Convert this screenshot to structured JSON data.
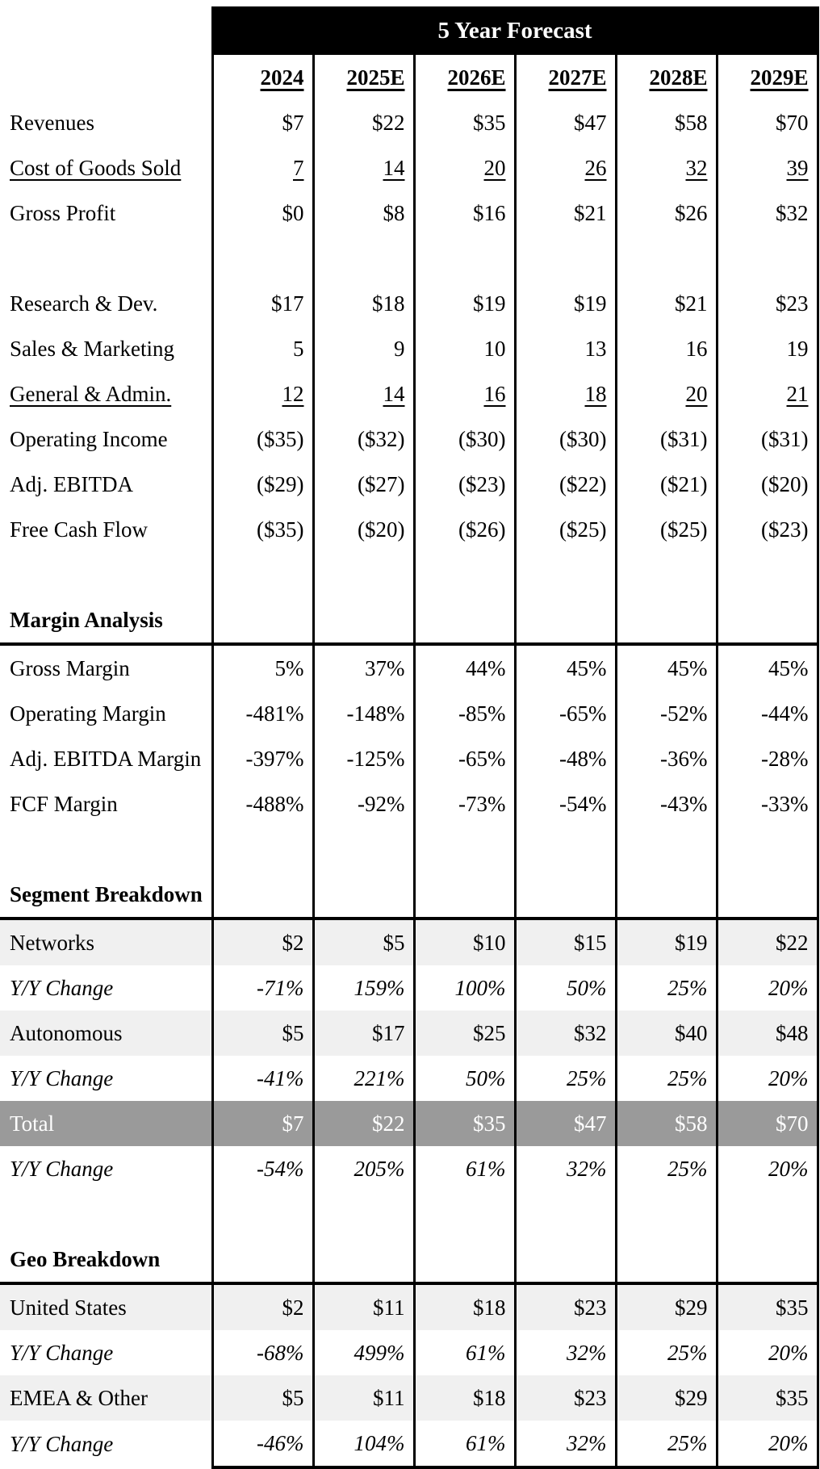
{
  "table": {
    "title": "5 Year Forecast",
    "columns": [
      "2024",
      "2025E",
      "2026E",
      "2027E",
      "2028E",
      "2029E"
    ],
    "rows": [
      {
        "label": "Revenues",
        "values": [
          "$7",
          "$22",
          "$35",
          "$47",
          "$58",
          "$70"
        ]
      },
      {
        "label": "Cost of Goods Sold",
        "values": [
          "7",
          "14",
          "20",
          "26",
          "32",
          "39"
        ],
        "underline": true
      },
      {
        "label": "Gross Profit",
        "values": [
          "$0",
          "$8",
          "$16",
          "$21",
          "$26",
          "$32"
        ]
      },
      {
        "blank": true
      },
      {
        "label": "Research & Dev.",
        "values": [
          "$17",
          "$18",
          "$19",
          "$19",
          "$21",
          "$23"
        ]
      },
      {
        "label": "Sales & Marketing",
        "values": [
          "5",
          "9",
          "10",
          "13",
          "16",
          "19"
        ]
      },
      {
        "label": "General & Admin.",
        "values": [
          "12",
          "14",
          "16",
          "18",
          "20",
          "21"
        ],
        "underline": true
      },
      {
        "label": "Operating Income",
        "values": [
          "($35)",
          "($32)",
          "($30)",
          "($30)",
          "($31)",
          "($31)"
        ]
      },
      {
        "label": "Adj. EBITDA",
        "values": [
          "($29)",
          "($27)",
          "($23)",
          "($22)",
          "($21)",
          "($20)"
        ]
      },
      {
        "label": "Free Cash Flow",
        "values": [
          "($35)",
          "($20)",
          "($26)",
          "($25)",
          "($25)",
          "($23)"
        ]
      },
      {
        "blank": true
      },
      {
        "label": "Margin Analysis",
        "section": true
      },
      {
        "label": "Gross Margin",
        "values": [
          "5%",
          "37%",
          "44%",
          "45%",
          "45%",
          "45%"
        ]
      },
      {
        "label": "Operating Margin",
        "values": [
          "-481%",
          "-148%",
          "-85%",
          "-65%",
          "-52%",
          "-44%"
        ]
      },
      {
        "label": "Adj. EBITDA Margin",
        "values": [
          "-397%",
          "-125%",
          "-65%",
          "-48%",
          "-36%",
          "-28%"
        ]
      },
      {
        "label": "FCF Margin",
        "values": [
          "-488%",
          "-92%",
          "-73%",
          "-54%",
          "-43%",
          "-33%"
        ]
      },
      {
        "blank": true
      },
      {
        "label": "Segment Breakdown",
        "section": true
      },
      {
        "label": "Networks",
        "values": [
          "$2",
          "$5",
          "$10",
          "$15",
          "$19",
          "$22"
        ],
        "shade": "light"
      },
      {
        "label": "Y/Y Change",
        "values": [
          "-71%",
          "159%",
          "100%",
          "50%",
          "25%",
          "20%"
        ],
        "italic": true
      },
      {
        "label": "Autonomous",
        "values": [
          "$5",
          "$17",
          "$25",
          "$32",
          "$40",
          "$48"
        ],
        "shade": "light"
      },
      {
        "label": "Y/Y Change",
        "values": [
          "-41%",
          "221%",
          "50%",
          "25%",
          "25%",
          "20%"
        ],
        "italic": true
      },
      {
        "label": "Total",
        "values": [
          "$7",
          "$22",
          "$35",
          "$47",
          "$58",
          "$70"
        ],
        "shade": "dark"
      },
      {
        "label": "Y/Y Change",
        "values": [
          "-54%",
          "205%",
          "61%",
          "32%",
          "25%",
          "20%"
        ],
        "italic": true
      },
      {
        "blank": true
      },
      {
        "label": "Geo Breakdown",
        "section": true
      },
      {
        "label": "United States",
        "values": [
          "$2",
          "$11",
          "$18",
          "$23",
          "$29",
          "$35"
        ],
        "shade": "light"
      },
      {
        "label": "Y/Y Change",
        "values": [
          "-68%",
          "499%",
          "61%",
          "32%",
          "25%",
          "20%"
        ],
        "italic": true
      },
      {
        "label": "EMEA & Other",
        "values": [
          "$5",
          "$11",
          "$18",
          "$23",
          "$29",
          "$35"
        ],
        "shade": "light"
      },
      {
        "label": "Y/Y Change",
        "values": [
          "-46%",
          "104%",
          "61%",
          "32%",
          "25%",
          "20%"
        ],
        "italic": true
      }
    ],
    "colors": {
      "header_bg": "#000000",
      "header_text": "#ffffff",
      "light_row": "#f0f0f0",
      "dark_row": "#9a9a9a",
      "dark_row_text": "#ffffff",
      "border": "#000000"
    }
  },
  "chart_data": {
    "type": "table",
    "title": "5 Year Forecast",
    "categories": [
      "2024",
      "2025E",
      "2026E",
      "2027E",
      "2028E",
      "2029E"
    ],
    "series": [
      {
        "name": "Revenues ($M)",
        "values": [
          7,
          22,
          35,
          47,
          58,
          70
        ]
      },
      {
        "name": "Cost of Goods Sold",
        "values": [
          7,
          14,
          20,
          26,
          32,
          39
        ]
      },
      {
        "name": "Gross Profit",
        "values": [
          0,
          8,
          16,
          21,
          26,
          32
        ]
      },
      {
        "name": "Research & Dev.",
        "values": [
          17,
          18,
          19,
          19,
          21,
          23
        ]
      },
      {
        "name": "Sales & Marketing",
        "values": [
          5,
          9,
          10,
          13,
          16,
          19
        ]
      },
      {
        "name": "General & Admin.",
        "values": [
          12,
          14,
          16,
          18,
          20,
          21
        ]
      },
      {
        "name": "Operating Income",
        "values": [
          -35,
          -32,
          -30,
          -30,
          -31,
          -31
        ]
      },
      {
        "name": "Adj. EBITDA",
        "values": [
          -29,
          -27,
          -23,
          -22,
          -21,
          -20
        ]
      },
      {
        "name": "Free Cash Flow",
        "values": [
          -35,
          -20,
          -26,
          -25,
          -25,
          -23
        ]
      },
      {
        "name": "Gross Margin (%)",
        "values": [
          5,
          37,
          44,
          45,
          45,
          45
        ]
      },
      {
        "name": "Operating Margin (%)",
        "values": [
          -481,
          -148,
          -85,
          -65,
          -52,
          -44
        ]
      },
      {
        "name": "Adj. EBITDA Margin (%)",
        "values": [
          -397,
          -125,
          -65,
          -48,
          -36,
          -28
        ]
      },
      {
        "name": "FCF Margin (%)",
        "values": [
          -488,
          -92,
          -73,
          -54,
          -43,
          -33
        ]
      },
      {
        "name": "Networks",
        "values": [
          2,
          5,
          10,
          15,
          19,
          22
        ]
      },
      {
        "name": "Networks Y/Y Change (%)",
        "values": [
          -71,
          159,
          100,
          50,
          25,
          20
        ]
      },
      {
        "name": "Autonomous",
        "values": [
          5,
          17,
          25,
          32,
          40,
          48
        ]
      },
      {
        "name": "Autonomous Y/Y Change (%)",
        "values": [
          -41,
          221,
          50,
          25,
          25,
          20
        ]
      },
      {
        "name": "Total",
        "values": [
          7,
          22,
          35,
          47,
          58,
          70
        ]
      },
      {
        "name": "Total Y/Y Change (%)",
        "values": [
          -54,
          205,
          61,
          32,
          25,
          20
        ]
      },
      {
        "name": "United States",
        "values": [
          2,
          11,
          18,
          23,
          29,
          35
        ]
      },
      {
        "name": "United States Y/Y Change (%)",
        "values": [
          -68,
          499,
          61,
          32,
          25,
          20
        ]
      },
      {
        "name": "EMEA & Other",
        "values": [
          5,
          11,
          18,
          23,
          29,
          35
        ]
      },
      {
        "name": "EMEA & Other Y/Y Change (%)",
        "values": [
          -46,
          104,
          61,
          32,
          25,
          20
        ]
      }
    ],
    "layout": {
      "grid": "vertical-column-separators",
      "section_dividers": [
        "Margin Analysis",
        "Segment Breakdown",
        "Geo Breakdown"
      ]
    }
  }
}
